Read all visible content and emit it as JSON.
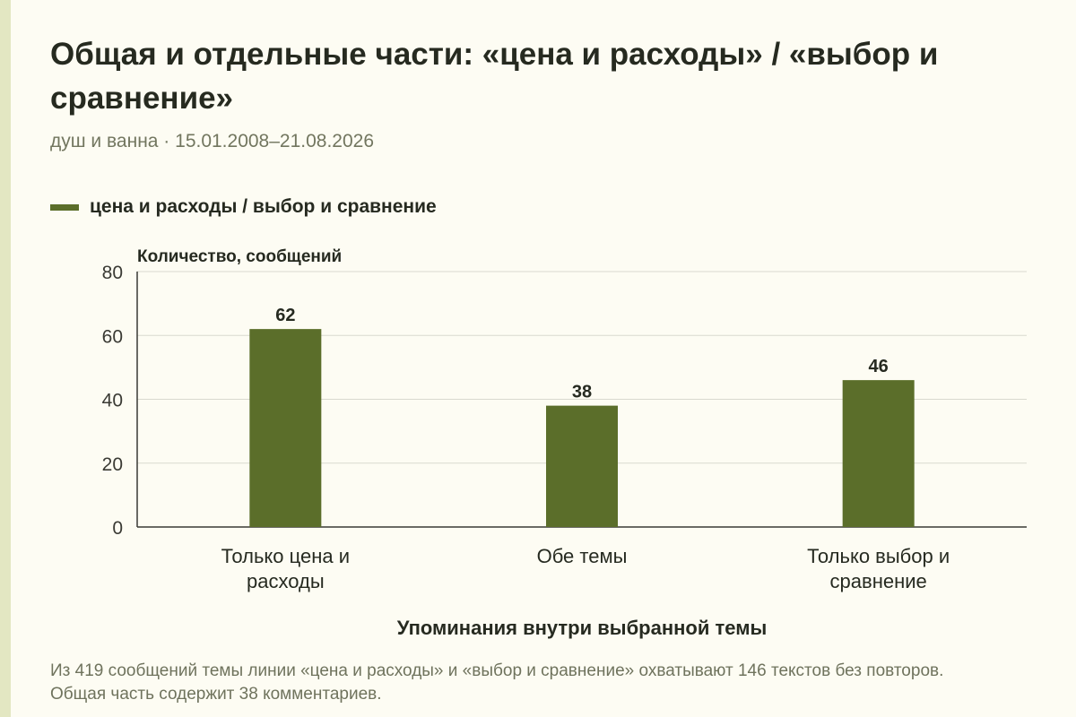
{
  "title": "Общая и отдельные части: «цена и расходы» / «выбор и сравнение»",
  "subtitle": "душ и ванна · 15.01.2008–21.08.2026",
  "footnote": "Из 419 сообщений темы линии «цена и расходы» и «выбор и сравнение» охватывают 146 текстов без повторов. Общая часть содержит 38 комментариев.",
  "colors": {
    "bar": "#5b6e2a",
    "grid": "#d9d9cf",
    "text": "#262a20"
  },
  "chart_data": {
    "type": "bar",
    "categories": [
      "Только цена и расходы",
      "Обе темы",
      "Только выбор и сравнение"
    ],
    "series": [
      {
        "name": "цена и расходы / выбор и сравнение",
        "values": [
          62,
          38,
          46
        ]
      }
    ],
    "ylabel": "Количество, сообщений",
    "xlabel": "Упоминания внутри выбранной темы",
    "ylim": [
      0,
      80
    ],
    "yticks": [
      0,
      20,
      40,
      60,
      80
    ],
    "data_labels": true,
    "grid": true,
    "legend": "top-left"
  }
}
